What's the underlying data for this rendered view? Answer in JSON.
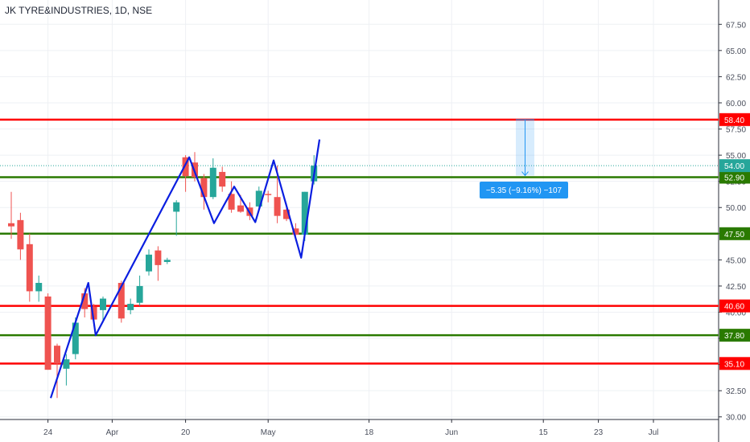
{
  "header": {
    "title": "JK TYRE&INDUSTRIES, 1D, NSE"
  },
  "colors": {
    "up": "#26a69a",
    "down": "#ef5350",
    "pattern": "#0a1ee0",
    "resistance": "#ff0000",
    "support": "#2a7a00",
    "last_price": "#26a69a",
    "measure": "#2196f3"
  },
  "chart_data": {
    "type": "candlestick",
    "title": "JK TYRE&INDUSTRIES, 1D, NSE",
    "grid": true,
    "ylim": [
      29.75,
      68.75
    ],
    "y_ticks": [
      30.0,
      32.5,
      35.0,
      37.5,
      40.0,
      42.5,
      45.0,
      47.5,
      50.0,
      52.5,
      55.0,
      57.5,
      60.0,
      62.5,
      65.0,
      67.5
    ],
    "x_tick_labels": [
      "24",
      "Apr",
      "20",
      "May",
      "18",
      "Jun",
      "15",
      "23",
      "Jul"
    ],
    "x_tick_index": [
      4,
      11,
      19,
      28,
      39,
      48,
      58,
      64,
      70
    ],
    "candles": [
      {
        "i": 0,
        "o": 48.5,
        "h": 51.5,
        "l": 47.0,
        "c": 48.2
      },
      {
        "i": 1,
        "o": 48.8,
        "h": 49.5,
        "l": 45.0,
        "c": 46.0
      },
      {
        "i": 2,
        "o": 46.5,
        "h": 47.5,
        "l": 41.0,
        "c": 42.0
      },
      {
        "i": 3,
        "o": 42.0,
        "h": 43.5,
        "l": 41.0,
        "c": 42.8
      },
      {
        "i": 4,
        "o": 41.5,
        "h": 41.8,
        "l": 34.5,
        "c": 34.5
      },
      {
        "i": 5,
        "o": 36.8,
        "h": 37.0,
        "l": 31.8,
        "c": 35.1
      },
      {
        "i": 6,
        "o": 34.6,
        "h": 36.0,
        "l": 33.0,
        "c": 35.5
      },
      {
        "i": 7,
        "o": 36.0,
        "h": 39.5,
        "l": 35.5,
        "c": 39.0
      },
      {
        "i": 8,
        "o": 41.8,
        "h": 42.3,
        "l": 39.5,
        "c": 40.3
      },
      {
        "i": 9,
        "o": 40.5,
        "h": 40.8,
        "l": 38.7,
        "c": 39.3
      },
      {
        "i": 10,
        "o": 40.2,
        "h": 41.5,
        "l": 39.0,
        "c": 41.3
      },
      {
        "i": 12,
        "o": 42.8,
        "h": 43.0,
        "l": 39.0,
        "c": 39.4
      },
      {
        "i": 13,
        "o": 40.2,
        "h": 41.3,
        "l": 39.8,
        "c": 40.8
      },
      {
        "i": 14,
        "o": 40.9,
        "h": 43.5,
        "l": 40.6,
        "c": 42.5
      },
      {
        "i": 15,
        "o": 43.9,
        "h": 46.0,
        "l": 43.5,
        "c": 45.5
      },
      {
        "i": 16,
        "o": 45.9,
        "h": 46.3,
        "l": 43.0,
        "c": 44.5
      },
      {
        "i": 17,
        "o": 44.8,
        "h": 45.2,
        "l": 44.6,
        "c": 45.0
      },
      {
        "i": 18,
        "o": 49.6,
        "h": 50.7,
        "l": 47.3,
        "c": 50.5
      },
      {
        "i": 19,
        "o": 54.8,
        "h": 55.0,
        "l": 51.5,
        "c": 53.0
      },
      {
        "i": 20,
        "o": 54.3,
        "h": 55.3,
        "l": 52.5,
        "c": 52.9
      },
      {
        "i": 21,
        "o": 52.8,
        "h": 53.2,
        "l": 49.8,
        "c": 51.0
      },
      {
        "i": 22,
        "o": 51.0,
        "h": 54.7,
        "l": 50.8,
        "c": 53.8
      },
      {
        "i": 23,
        "o": 53.4,
        "h": 53.9,
        "l": 51.5,
        "c": 52.0
      },
      {
        "i": 24,
        "o": 51.3,
        "h": 52.5,
        "l": 49.5,
        "c": 49.8
      },
      {
        "i": 25,
        "o": 50.2,
        "h": 51.2,
        "l": 49.5,
        "c": 49.6
      },
      {
        "i": 26,
        "o": 50.0,
        "h": 50.5,
        "l": 48.8,
        "c": 49.2
      },
      {
        "i": 27,
        "o": 50.1,
        "h": 52.0,
        "l": 49.9,
        "c": 51.6
      },
      {
        "i": 28,
        "o": 51.3,
        "h": 51.6,
        "l": 50.5,
        "c": 51.2
      },
      {
        "i": 29,
        "o": 51.0,
        "h": 54.0,
        "l": 48.5,
        "c": 49.2
      },
      {
        "i": 30,
        "o": 49.8,
        "h": 50.4,
        "l": 48.7,
        "c": 48.9
      },
      {
        "i": 31,
        "o": 48.0,
        "h": 48.5,
        "l": 46.8,
        "c": 47.4
      },
      {
        "i": 32,
        "o": 47.4,
        "h": 51.5,
        "l": 46.8,
        "c": 51.5
      },
      {
        "i": 33,
        "o": 52.5,
        "h": 55.0,
        "l": 52.2,
        "c": 54.0
      }
    ],
    "pattern_line": [
      {
        "i": 4.3,
        "v": 31.8
      },
      {
        "i": 8.4,
        "v": 42.8
      },
      {
        "i": 9.2,
        "v": 37.8
      },
      {
        "i": 19.4,
        "v": 54.8
      },
      {
        "i": 22.1,
        "v": 48.5
      },
      {
        "i": 24.3,
        "v": 52.0
      },
      {
        "i": 26.6,
        "v": 48.6
      },
      {
        "i": 28.6,
        "v": 54.5
      },
      {
        "i": 31.6,
        "v": 45.2
      },
      {
        "i": 33.6,
        "v": 56.5
      }
    ],
    "horizontal_lines": [
      {
        "value": 58.4,
        "label": "58.40",
        "color": "#ff0000"
      },
      {
        "value": 52.9,
        "label": "52.90",
        "color": "#2a7a00"
      },
      {
        "value": 47.5,
        "label": "47.50",
        "color": "#2a7a00"
      },
      {
        "value": 40.6,
        "label": "40.60",
        "color": "#ff0000"
      },
      {
        "value": 37.8,
        "label": "37.80",
        "color": "#2a7a00"
      },
      {
        "value": 35.1,
        "label": "35.10",
        "color": "#ff0000"
      }
    ],
    "last_price": {
      "value": 54.0,
      "label": "54.00"
    },
    "measure": {
      "from": 58.4,
      "to": 53.05,
      "label": "−5.35 (−9.16%) −107"
    }
  }
}
